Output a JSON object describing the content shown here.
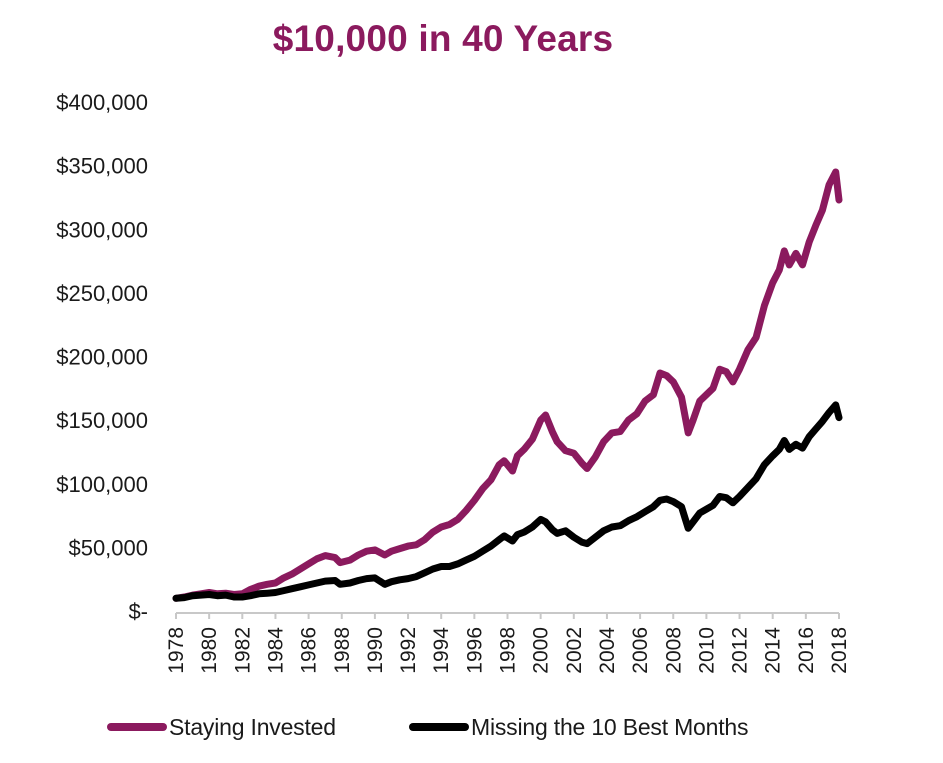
{
  "chart_data": {
    "type": "line",
    "title": "$10,000 in 40 Years",
    "xlabel": "",
    "ylabel": "",
    "xlim": [
      1978,
      2018
    ],
    "ylim": [
      0,
      400000
    ],
    "y_ticks": [
      0,
      50000,
      100000,
      150000,
      200000,
      250000,
      300000,
      350000,
      400000
    ],
    "y_tick_labels": [
      "$-",
      "$50,000",
      "$100,000",
      "$150,000",
      "$200,000",
      "$250,000",
      "$300,000",
      "$350,000",
      "$400,000"
    ],
    "x_ticks": [
      1978,
      1980,
      1982,
      1984,
      1986,
      1988,
      1990,
      1992,
      1994,
      1996,
      1998,
      2000,
      2002,
      2004,
      2006,
      2008,
      2010,
      2012,
      2014,
      2016,
      2018
    ],
    "x_tick_labels": [
      "1978",
      "1980",
      "1982",
      "1984",
      "1986",
      "1988",
      "1990",
      "1992",
      "1994",
      "1996",
      "1998",
      "2000",
      "2002",
      "2004",
      "2006",
      "2008",
      "2010",
      "2012",
      "2014",
      "2016",
      "2018"
    ],
    "grid": false,
    "legend_position": "bottom",
    "series": [
      {
        "name": "Staying Invested",
        "color": "#8B1A5E",
        "x": [
          1978.0,
          1978.5,
          1979.0,
          1979.5,
          1980.0,
          1980.5,
          1981.0,
          1981.5,
          1982.0,
          1982.5,
          1983.0,
          1983.5,
          1984.0,
          1984.5,
          1985.0,
          1985.5,
          1986.0,
          1986.5,
          1987.0,
          1987.6,
          1987.9,
          1988.5,
          1989.0,
          1989.5,
          1990.0,
          1990.6,
          1991.0,
          1991.5,
          1992.0,
          1992.5,
          1993.0,
          1993.5,
          1994.0,
          1994.5,
          1995.0,
          1995.5,
          1996.0,
          1996.5,
          1997.0,
          1997.5,
          1997.8,
          1998.3,
          1998.6,
          1999.0,
          1999.5,
          2000.0,
          2000.3,
          2000.7,
          2001.0,
          2001.5,
          2002.0,
          2002.5,
          2002.8,
          2003.3,
          2003.8,
          2004.3,
          2004.8,
          2005.3,
          2005.8,
          2006.3,
          2006.8,
          2007.2,
          2007.6,
          2008.0,
          2008.5,
          2008.9,
          2009.2,
          2009.6,
          2010.0,
          2010.4,
          2010.8,
          2011.2,
          2011.6,
          2012.0,
          2012.5,
          2013.0,
          2013.5,
          2014.0,
          2014.4,
          2014.7,
          2015.0,
          2015.4,
          2015.8,
          2016.2,
          2016.6,
          2017.0,
          2017.4,
          2017.8,
          2018.0
        ],
        "values": [
          10000,
          11000,
          12500,
          13500,
          14500,
          13500,
          14000,
          13000,
          13500,
          17000,
          19500,
          21000,
          22000,
          26000,
          29000,
          33000,
          37000,
          41000,
          43500,
          42000,
          38000,
          40000,
          44000,
          47000,
          48000,
          44000,
          47000,
          49000,
          51000,
          52000,
          56000,
          62000,
          66000,
          68000,
          72000,
          79000,
          87000,
          96000,
          103000,
          115000,
          118000,
          110000,
          122000,
          127000,
          135000,
          150000,
          154000,
          141000,
          133000,
          126000,
          124000,
          116000,
          112000,
          121000,
          133000,
          140000,
          141000,
          150000,
          155000,
          165000,
          170000,
          187000,
          185000,
          180000,
          168000,
          140000,
          150000,
          165000,
          170000,
          175000,
          190000,
          188000,
          180000,
          190000,
          205000,
          215000,
          240000,
          258000,
          268000,
          283000,
          272000,
          281000,
          272000,
          290000,
          303000,
          315000,
          335000,
          345000,
          323000
        ]
      },
      {
        "name": "Missing the 10 Best Months",
        "color": "#000000",
        "x": [
          1978.0,
          1978.5,
          1979.0,
          1979.5,
          1980.0,
          1980.5,
          1981.0,
          1981.5,
          1982.0,
          1982.5,
          1983.0,
          1983.5,
          1984.0,
          1984.5,
          1985.0,
          1985.5,
          1986.0,
          1986.5,
          1987.0,
          1987.6,
          1987.9,
          1988.5,
          1989.0,
          1989.5,
          1990.0,
          1990.6,
          1991.0,
          1991.5,
          1992.0,
          1992.5,
          1993.0,
          1993.5,
          1994.0,
          1994.5,
          1995.0,
          1995.5,
          1996.0,
          1996.5,
          1997.0,
          1997.5,
          1997.8,
          1998.3,
          1998.6,
          1999.0,
          1999.5,
          2000.0,
          2000.3,
          2000.7,
          2001.0,
          2001.5,
          2002.0,
          2002.5,
          2002.8,
          2003.3,
          2003.8,
          2004.3,
          2004.8,
          2005.3,
          2005.8,
          2006.3,
          2006.8,
          2007.2,
          2007.6,
          2008.0,
          2008.5,
          2008.9,
          2009.2,
          2009.6,
          2010.0,
          2010.4,
          2010.8,
          2011.2,
          2011.6,
          2012.0,
          2012.5,
          2013.0,
          2013.5,
          2014.0,
          2014.4,
          2014.7,
          2015.0,
          2015.4,
          2015.8,
          2016.2,
          2016.6,
          2017.0,
          2017.4,
          2017.8,
          2018.0
        ],
        "values": [
          10000,
          10500,
          12000,
          12500,
          13000,
          12000,
          12500,
          11000,
          11000,
          12000,
          13500,
          14000,
          14500,
          16000,
          17500,
          19000,
          20500,
          22000,
          23500,
          24000,
          21000,
          22000,
          24000,
          25500,
          26000,
          21000,
          23000,
          24500,
          25500,
          27000,
          30000,
          33000,
          35000,
          35000,
          37000,
          40000,
          43000,
          47000,
          51000,
          56000,
          59000,
          55000,
          60000,
          62000,
          66000,
          72000,
          70000,
          64000,
          61000,
          63000,
          58000,
          54000,
          53000,
          58000,
          63000,
          66000,
          67000,
          71000,
          74000,
          78000,
          82000,
          87000,
          88000,
          86000,
          82000,
          65000,
          70000,
          77000,
          80000,
          83000,
          90000,
          89000,
          85000,
          90000,
          97000,
          104000,
          115000,
          122000,
          127000,
          134000,
          127000,
          131000,
          128000,
          137000,
          143000,
          149000,
          156000,
          162000,
          152000
        ]
      }
    ]
  }
}
